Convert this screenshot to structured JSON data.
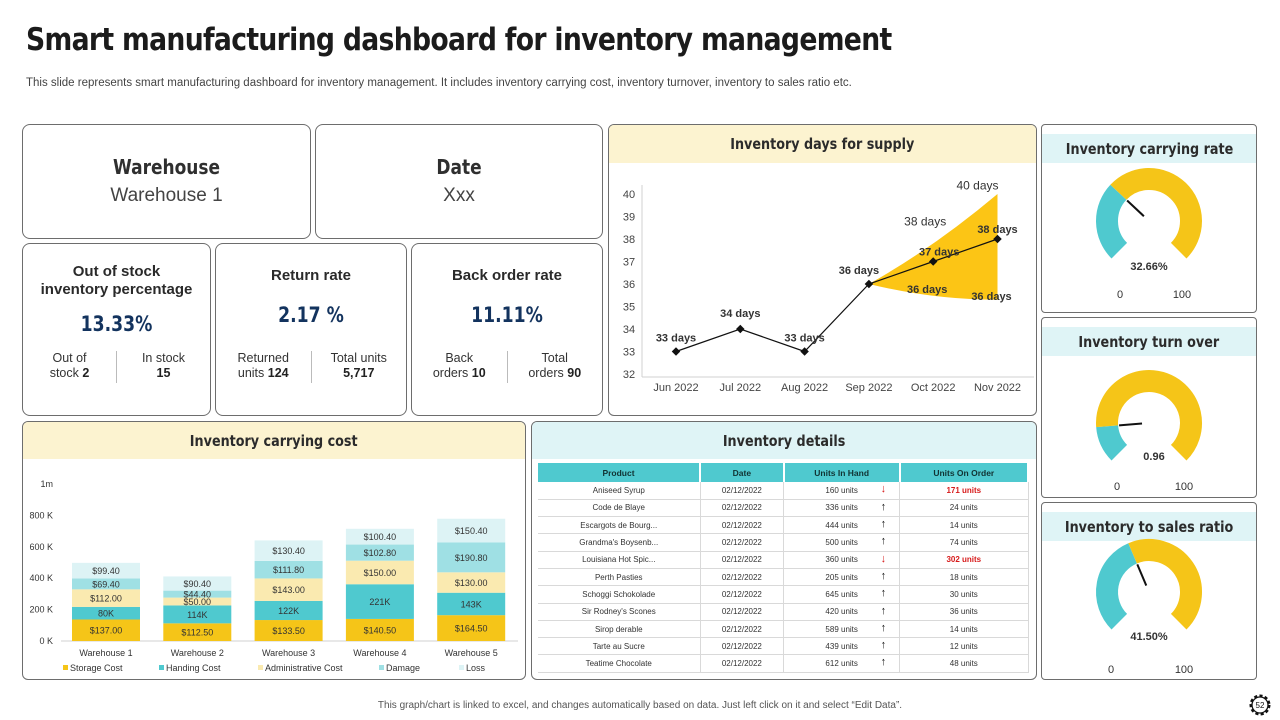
{
  "title": "Smart manufacturing dashboard for inventory management",
  "subtitle": "This slide represents smart manufacturing dashboard for inventory management. It includes inventory carrying cost, inventory turnover, inventory to sales ratio etc.",
  "warehouse": {
    "label": "Warehouse",
    "value": "Warehouse 1"
  },
  "date": {
    "label": "Date",
    "value": "Xxx"
  },
  "kpis": {
    "out_of_stock": {
      "title_line1": "Out of stock",
      "title_line2": "inventory percentage",
      "value": "13.33%",
      "left_label1": "Out of",
      "left_label2": "stock",
      "left_value": "2",
      "right_label1": "In stock",
      "right_value": "15"
    },
    "return_rate": {
      "title": "Return rate",
      "value": "2.17 %",
      "left_label1": "Returned",
      "left_label2": "units",
      "left_value": "124",
      "right_label1": "Total units",
      "right_value": "5,717"
    },
    "back_order": {
      "title": "Back order rate",
      "value": "11.11%",
      "left_label1": "Back",
      "left_label2": "orders",
      "left_value": "10",
      "right_label1": "Total",
      "right_label2": "orders",
      "right_value": "90"
    }
  },
  "supply_chart": {
    "title": "Inventory days for supply",
    "chart_data": {
      "type": "line",
      "categories": [
        "Jun 2022",
        "Jul 2022",
        "Aug 2022",
        "Sep 2022",
        "Oct 2022",
        "Nov 2022"
      ],
      "values": [
        33,
        34,
        33,
        36,
        37,
        38
      ],
      "point_labels": [
        "33 days",
        "34 days",
        "33 days",
        "36 days",
        "37 days",
        "38 days"
      ],
      "forecast_upper": [
        36,
        38,
        40
      ],
      "forecast_upper_labels": [
        "38 days",
        "40 days"
      ],
      "forecast_lower": [
        36,
        36,
        36
      ],
      "forecast_lower_labels": [
        "36 days",
        "36 days"
      ],
      "ylim": [
        32,
        40
      ],
      "yticks": [
        "32",
        "33",
        "34",
        "35",
        "36",
        "37",
        "38",
        "39",
        "40"
      ]
    }
  },
  "gauges": {
    "carrying_rate": {
      "title": "Inventory carrying rate",
      "value_label": "32.66%",
      "fraction": 0.3266,
      "min": "0",
      "max": "100"
    },
    "turnover": {
      "title": "Inventory turn over",
      "value_label": "0.96",
      "fraction": 0.15,
      "min": "0",
      "max": "100"
    },
    "sales_ratio": {
      "title": "Inventory to sales ratio",
      "value_label": "41.50%",
      "fraction": 0.415,
      "min": "0",
      "max": "100"
    }
  },
  "carrying_cost": {
    "title": "Inventory carrying cost",
    "chart_data": {
      "type": "bar",
      "stacked": true,
      "categories": [
        "Warehouse 1",
        "Warehouse 2",
        "Warehouse 3",
        "Warehouse 4",
        "Warehouse 5"
      ],
      "series": [
        {
          "name": "Storage Cost",
          "color": "#f5c518",
          "values": [
            137,
            112.5,
            133.5,
            140.5,
            164.5
          ],
          "labels": [
            "$137.00",
            "$112.50",
            "$133.50",
            "$140.50",
            "$164.50"
          ]
        },
        {
          "name": "Handing Cost",
          "color": "#4fc9cf",
          "values": [
            80,
            114,
            122,
            221,
            143
          ],
          "labels": [
            "80K",
            "114K",
            "122K",
            "221K",
            "143K"
          ]
        },
        {
          "name": "Administrative Cost",
          "color": "#faeab0",
          "values": [
            112,
            50,
            143,
            150,
            130
          ],
          "labels": [
            "$112.00",
            "$50.00",
            "$143.00",
            "$150.00",
            "$130.00"
          ]
        },
        {
          "name": "Damage",
          "color": "#9fe0e4",
          "values": [
            69.4,
            44.4,
            111.8,
            102.8,
            190.8
          ],
          "labels": [
            "$69.40",
            "$44.40",
            "$111.80",
            "$102.80",
            "$190.80"
          ]
        },
        {
          "name": "Loss",
          "color": "#ddf3f5",
          "values": [
            99.4,
            90.4,
            130.4,
            100.4,
            150.4
          ],
          "labels": [
            "$99.40",
            "$90.40",
            "$130.40",
            "$100.40",
            "$150.40"
          ]
        }
      ],
      "yticks": [
        "0 K",
        "200 K",
        "400 K",
        "600 K",
        "800 K",
        "1m"
      ],
      "ylim": [
        0,
        1000
      ]
    }
  },
  "inventory_details": {
    "title": "Inventory details",
    "columns": [
      "Product",
      "Date",
      "Units In Hand",
      "Units On Order"
    ],
    "rows": [
      {
        "product": "Aniseed Syrup",
        "date": "02/12/2022",
        "hand": "160 units",
        "trend": "down",
        "order": "171 units",
        "alert": true
      },
      {
        "product": "Code de Blaye",
        "date": "02/12/2022",
        "hand": "336 units",
        "trend": "up",
        "order": "24 units",
        "alert": false
      },
      {
        "product": "Escargots de Bourg...",
        "date": "02/12/2022",
        "hand": "444 units",
        "trend": "up",
        "order": "14 units",
        "alert": false
      },
      {
        "product": "Grandma's Boysenb...",
        "date": "02/12/2022",
        "hand": "500 units",
        "trend": "up",
        "order": "74 units",
        "alert": false
      },
      {
        "product": "Louisiana Hot Spic...",
        "date": "02/12/2022",
        "hand": "360 units",
        "trend": "down",
        "order": "302 units",
        "alert": true
      },
      {
        "product": "Perth Pasties",
        "date": "02/12/2022",
        "hand": "205 units",
        "trend": "up",
        "order": "18 units",
        "alert": false
      },
      {
        "product": "Schoggi Schokolade",
        "date": "02/12/2022",
        "hand": "645 units",
        "trend": "up",
        "order": "30 units",
        "alert": false
      },
      {
        "product": "Sir Rodney's Scones",
        "date": "02/12/2022",
        "hand": "420 units",
        "trend": "up",
        "order": "36 units",
        "alert": false
      },
      {
        "product": "Sirop derable",
        "date": "02/12/2022",
        "hand": "589 units",
        "trend": "up",
        "order": "14 units",
        "alert": false
      },
      {
        "product": "Tarte au Sucre",
        "date": "02/12/2022",
        "hand": "439 units",
        "trend": "up",
        "order": "12 units",
        "alert": false
      },
      {
        "product": "Teatime Chocolate",
        "date": "02/12/2022",
        "hand": "612 units",
        "trend": "up",
        "order": "48 units",
        "alert": false
      }
    ]
  },
  "footer": "This graph/chart is linked to excel, and changes automatically based on data. Just left click on it and select “Edit Data”.",
  "page_number": "52",
  "colors": {
    "yellow": "#f5c518",
    "cyan": "#4fc9cf",
    "navy": "#13335e",
    "red": "#d71a1a"
  }
}
